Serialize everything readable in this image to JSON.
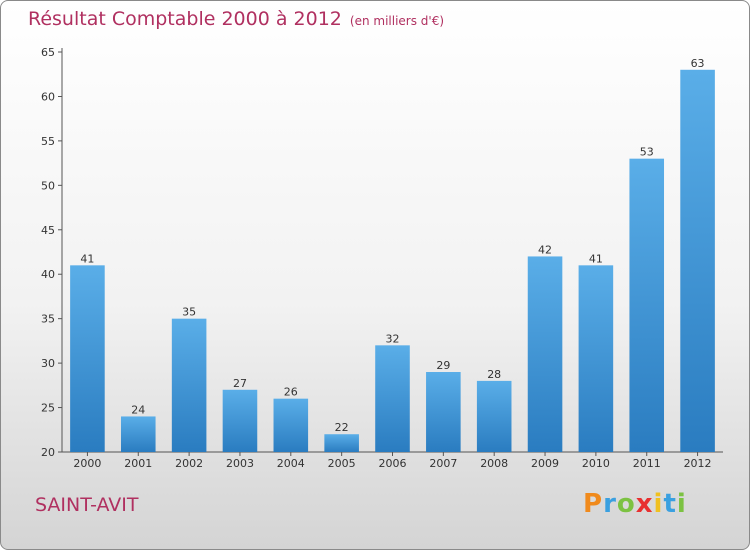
{
  "header": {
    "title": "Résultat Comptable 2000 à 2012",
    "subtitle": "(en milliers d'€)"
  },
  "footer": {
    "town": "SAINT-AVIT",
    "logo_letters": [
      "P",
      "r",
      "o",
      "x",
      "i",
      "t",
      "i"
    ]
  },
  "colors": {
    "title": "#b03060",
    "bar_top": "#5aaee8",
    "bar_bottom": "#2a7cc0"
  },
  "chart_data": {
    "type": "bar",
    "categories": [
      "2000",
      "2001",
      "2002",
      "2003",
      "2004",
      "2005",
      "2006",
      "2007",
      "2008",
      "2009",
      "2010",
      "2011",
      "2012"
    ],
    "values": [
      41,
      24,
      35,
      27,
      26,
      22,
      32,
      29,
      28,
      42,
      41,
      53,
      63
    ],
    "ylim": [
      20,
      65
    ],
    "yticks": [
      20,
      25,
      30,
      35,
      40,
      45,
      50,
      55,
      60,
      65
    ],
    "grid": false
  }
}
